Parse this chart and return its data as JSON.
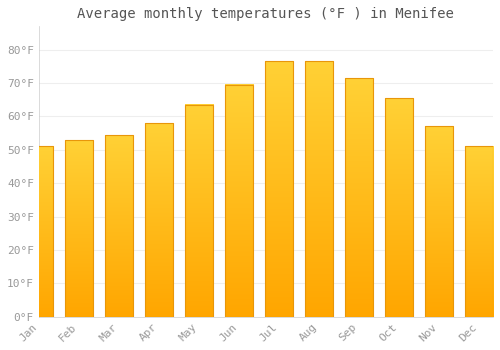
{
  "title": "Average monthly temperatures (°F ) in Menifee",
  "months": [
    "Jan",
    "Feb",
    "Mar",
    "Apr",
    "May",
    "Jun",
    "Jul",
    "Aug",
    "Sep",
    "Oct",
    "Nov",
    "Dec"
  ],
  "values": [
    51,
    53,
    54.5,
    58,
    63.5,
    69.5,
    76.5,
    76.5,
    71.5,
    65.5,
    57,
    51
  ],
  "bar_color_top": "#FFC125",
  "bar_color_bottom": "#FFAA00",
  "bar_edge_color": "#E8960A",
  "background_color": "#FFFFFF",
  "grid_color": "#EEEEEE",
  "yticks": [
    0,
    10,
    20,
    30,
    40,
    50,
    60,
    70,
    80
  ],
  "ytick_labels": [
    "0°F",
    "10°F",
    "20°F",
    "30°F",
    "40°F",
    "50°F",
    "60°F",
    "70°F",
    "80°F"
  ],
  "ylim": [
    0,
    87
  ],
  "title_fontsize": 10,
  "tick_fontsize": 8,
  "tick_color": "#999999",
  "title_color": "#555555"
}
